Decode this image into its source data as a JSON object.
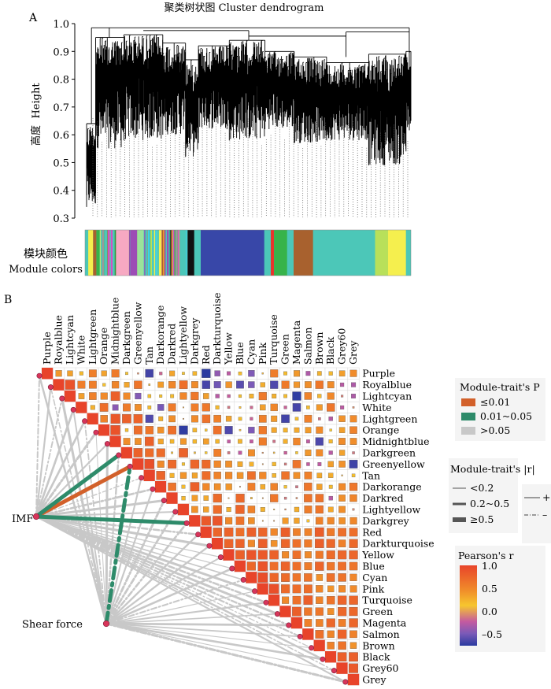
{
  "panel_a": {
    "label": "A",
    "title": "聚类树状图 Cluster dendrogram",
    "ylabel_cn": "高度",
    "ylabel_en": "Height",
    "module_label_cn": "模块颜色",
    "module_label_en": "Module colors"
  },
  "panel_b": {
    "label": "B",
    "traits": [
      "IMF",
      "Shear force"
    ],
    "legend": {
      "p_title": "Module-trait's P",
      "p_items": [
        {
          "label": "≤0.01",
          "color": "#d2602a"
        },
        {
          "label": "0.01~0.05",
          "color": "#2e8b6a"
        },
        {
          "label": ">0.05",
          "color": "#c8c8c8"
        }
      ],
      "r_title": "Module-trait's |r|",
      "r_items": [
        "<0.2",
        "0.2~0.5",
        "≥0.5"
      ],
      "sign_items": [
        "+",
        "–"
      ],
      "pearson_title": "Pearson's r",
      "pearson_ticks": [
        "1.0",
        "0.5",
        "0.0",
        "–0.5"
      ]
    }
  },
  "chart_data": [
    {
      "type": "dendrogram",
      "title": "聚类树状图 Cluster dendrogram",
      "ylabel": "高度 Height",
      "yticks": [
        "0.3",
        "0.4",
        "0.5",
        "0.6",
        "0.7",
        "0.8",
        "0.9",
        "1.0"
      ],
      "ylim": [
        0.3,
        1.0
      ],
      "module_color_bands": [
        {
          "color": "turquoise",
          "from": 0.0,
          "to": 0.01
        },
        {
          "color": "yellow",
          "from": 0.01,
          "to": 0.025
        },
        {
          "color": "brown",
          "from": 0.025,
          "to": 0.035
        },
        {
          "color": "green",
          "from": 0.035,
          "to": 0.045
        },
        {
          "color": "pink",
          "from": 0.095,
          "to": 0.135
        },
        {
          "color": "purple",
          "from": 0.14,
          "to": 0.16
        },
        {
          "color": "lightgreen",
          "from": 0.16,
          "to": 0.18
        },
        {
          "color": "black",
          "from": 0.315,
          "to": 0.335
        },
        {
          "color": "blue",
          "from": 0.355,
          "to": 0.55
        },
        {
          "color": "red",
          "from": 0.57,
          "to": 0.58
        },
        {
          "color": "green",
          "from": 0.58,
          "to": 0.62
        },
        {
          "color": "brown",
          "from": 0.64,
          "to": 0.7
        },
        {
          "color": "turquoise",
          "from": 0.7,
          "to": 0.89
        },
        {
          "color": "greenyellow",
          "from": 0.89,
          "to": 0.93
        },
        {
          "color": "yellow",
          "from": 0.93,
          "to": 0.985
        },
        {
          "color": "turquoise",
          "from": 0.985,
          "to": 1.0
        }
      ]
    },
    {
      "type": "heatmap",
      "title": "",
      "modules": [
        "Purple",
        "Royalblue",
        "Lightcyan",
        "White",
        "Lightgreen",
        "Orange",
        "Midnightblue",
        "Darkgreen",
        "Greenyellow",
        "Tan",
        "Darkorange",
        "Darkred",
        "Lightyellow",
        "Darkgrey",
        "Red",
        "Darkturquoise",
        "Yellow",
        "Blue",
        "Cyan",
        "Pink",
        "Turquoise",
        "Green",
        "Magenta",
        "Salmon",
        "Brown",
        "Black",
        "Grey60",
        "Grey"
      ],
      "value_range": [
        -0.75,
        1.0
      ],
      "colorbar_ticks": [
        1.0,
        0.5,
        0.0,
        -0.5
      ]
    },
    {
      "type": "network",
      "traits": [
        "IMF",
        "Shear force"
      ],
      "links": [
        {
          "trait": "IMF",
          "module": "Greenyellow",
          "p_class": "≤0.01",
          "r_class": "≥0.5",
          "sign": "+"
        },
        {
          "trait": "IMF",
          "module": "Darkgreen",
          "p_class": "0.01~0.05",
          "r_class": "≥0.5",
          "sign": "+"
        },
        {
          "trait": "IMF",
          "module": "Darkgrey",
          "p_class": "0.01~0.05",
          "r_class": "≥0.5",
          "sign": "+"
        },
        {
          "trait": "Shear force",
          "module": "Greenyellow",
          "p_class": "0.01~0.05",
          "r_class": "≥0.5",
          "sign": "–"
        }
      ]
    }
  ]
}
